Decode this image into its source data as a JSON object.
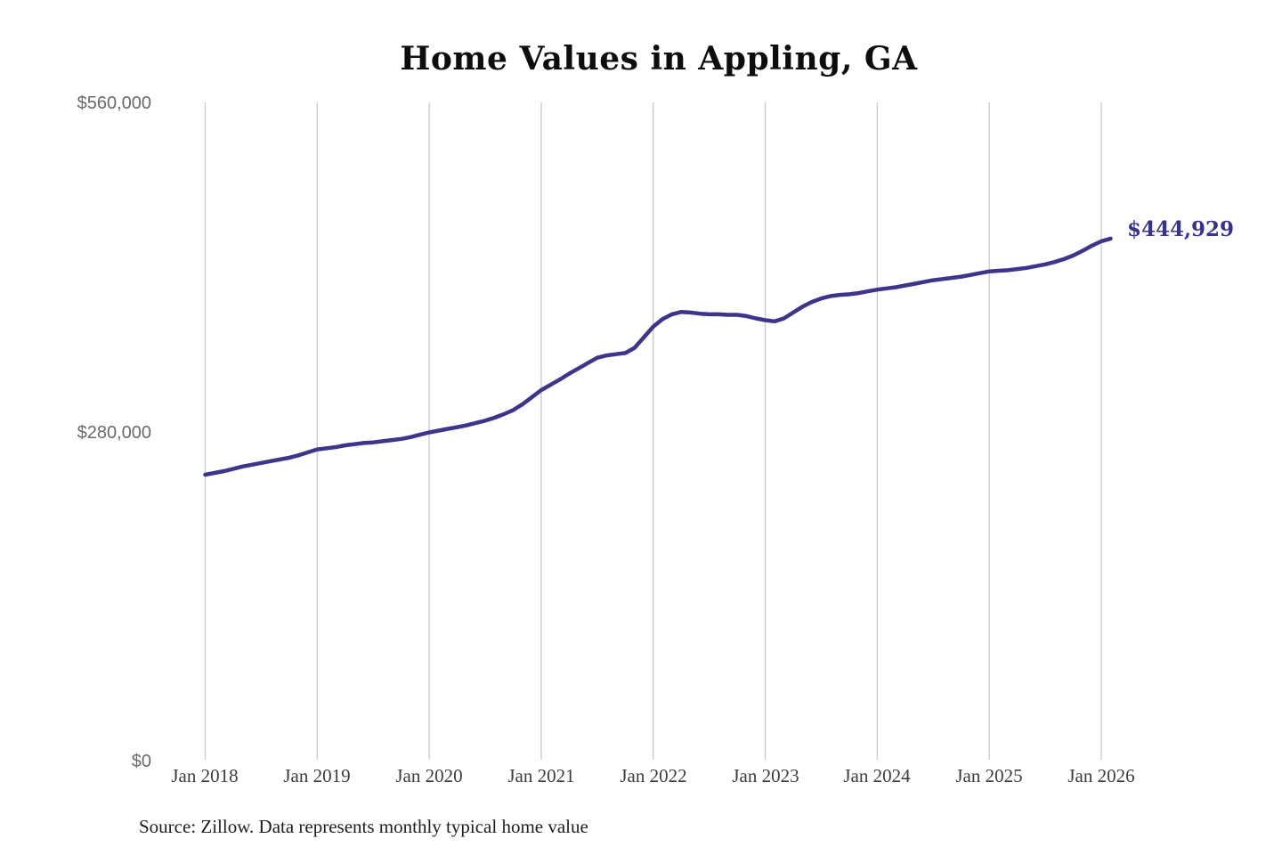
{
  "source_note": "Source: Zillow. Data represents monthly typical home value",
  "chart_data": {
    "type": "line",
    "title": "Home Values in Appling, GA",
    "series_name": "Monthly typical home value",
    "frequency": "monthly",
    "start_month": "2018-01",
    "end_month": "2026-02",
    "latest_value": 444929,
    "latest_value_label": "$444,929",
    "ylim": [
      0,
      560000
    ],
    "y_tick_labels": [
      "$560,000",
      "$280,000",
      "$0"
    ],
    "y_tick_values": [
      560000,
      280000,
      0
    ],
    "x_tick_labels": [
      "Jan 2018",
      "Jan 2019",
      "Jan 2020",
      "Jan 2021",
      "Jan 2022",
      "Jan 2023",
      "Jan 2024",
      "Jan 2025",
      "Jan 2026"
    ],
    "grid": "vertical-only",
    "grid_color": "#cccccc",
    "line_color": "#3d348b",
    "values": [
      244000,
      245500,
      247000,
      249000,
      251000,
      252500,
      254000,
      255500,
      257000,
      258500,
      260500,
      263000,
      265500,
      266500,
      267500,
      269000,
      270000,
      271000,
      271500,
      272500,
      273500,
      274500,
      276000,
      278000,
      280000,
      281500,
      283000,
      284500,
      286000,
      288000,
      290000,
      292500,
      295500,
      299000,
      304000,
      310000,
      316000,
      320500,
      325000,
      330000,
      334500,
      339000,
      343500,
      345500,
      346500,
      347500,
      352000,
      361000,
      370000,
      376500,
      380500,
      382500,
      382000,
      381000,
      380500,
      380500,
      380000,
      380000,
      379000,
      377000,
      375500,
      374500,
      377000,
      382000,
      387000,
      391000,
      394000,
      396000,
      397000,
      397500,
      398500,
      400000,
      401500,
      402500,
      403500,
      405000,
      406500,
      408000,
      409500,
      410500,
      411500,
      412500,
      414000,
      415500,
      417000,
      417500,
      418000,
      419000,
      420000,
      421500,
      423000,
      425000,
      427500,
      430500,
      434500,
      438800,
      442600,
      444929
    ]
  }
}
